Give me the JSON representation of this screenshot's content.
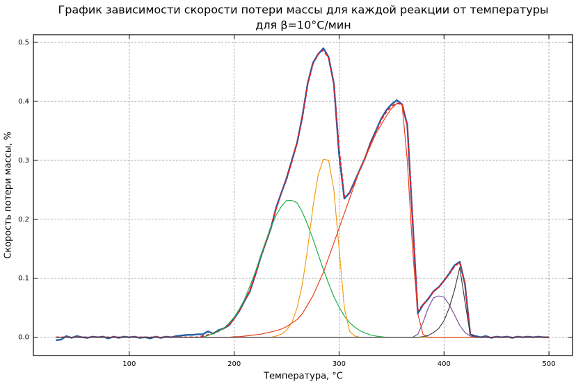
{
  "chart_data": {
    "type": "line",
    "title": [
      "График зависимости скорости потери массы для каждой реакции от температуры",
      "для β=10°C/мин"
    ],
    "xlabel": "Температура, °C",
    "ylabel": "Скорость потери массы, %",
    "xlim": [
      8.6,
      522.5
    ],
    "ylim": [
      -0.031,
      0.513
    ],
    "xticks": [
      100,
      200,
      300,
      400,
      500
    ],
    "yticks": [
      {
        "value": 0,
        "label": "0.0"
      },
      0.1,
      0.2,
      0.3,
      0.4,
      0.5
    ],
    "grid": true,
    "x": [
      30,
      35,
      40,
      45,
      50,
      55,
      60,
      65,
      70,
      75,
      80,
      85,
      90,
      95,
      100,
      105,
      110,
      115,
      120,
      125,
      130,
      135,
      140,
      145,
      150,
      155,
      160,
      165,
      170,
      175,
      180,
      185,
      190,
      195,
      200,
      205,
      210,
      215,
      220,
      225,
      230,
      235,
      240,
      245,
      250,
      255,
      260,
      265,
      270,
      275,
      280,
      285,
      290,
      295,
      300,
      305,
      310,
      315,
      320,
      325,
      330,
      335,
      340,
      345,
      350,
      355,
      360,
      365,
      370,
      375,
      380,
      385,
      390,
      395,
      400,
      405,
      410,
      415,
      420,
      425,
      430,
      435,
      440,
      445,
      450,
      455,
      460,
      465,
      470,
      475,
      480,
      485,
      490,
      495,
      500
    ],
    "series": [
      {
        "color": "#2060a8",
        "linewidth": 2.4,
        "linestyle": "solid",
        "values": [
          -0.005,
          -0.004,
          0.002,
          -0.001,
          0.002,
          0,
          -0.001,
          0.001,
          0,
          0.001,
          -0.002,
          0.001,
          -0.001,
          0.001,
          0,
          0.001,
          -0.001,
          0,
          -0.002,
          0.001,
          -0.001,
          0.001,
          0,
          0.002,
          0.003,
          0.004,
          0.004,
          0.005,
          0.005,
          0.01,
          0.006,
          0.012,
          0.015,
          0.02,
          0.032,
          0.045,
          0.062,
          0.078,
          0.105,
          0.135,
          0.16,
          0.185,
          0.22,
          0.245,
          0.27,
          0.3,
          0.33,
          0.375,
          0.43,
          0.465,
          0.48,
          0.49,
          0.475,
          0.43,
          0.31,
          0.235,
          0.245,
          0.265,
          0.285,
          0.305,
          0.33,
          0.35,
          0.37,
          0.385,
          0.395,
          0.402,
          0.395,
          0.36,
          0.2,
          0.04,
          0.055,
          0.065,
          0.078,
          0.085,
          0.096,
          0.108,
          0.122,
          0.128,
          0.09,
          0.005,
          0.002,
          0,
          0.002,
          -0.001,
          0.001,
          0,
          0.001,
          -0.001,
          0.001,
          0,
          0.001,
          0,
          0.001,
          0,
          0
        ]
      },
      {
        "color": "#e8202a",
        "linewidth": 2,
        "linestyle": "dashed",
        "values": [
          0,
          0,
          0,
          0,
          0,
          0,
          0,
          0,
          0,
          0,
          0,
          0,
          0,
          0,
          0,
          0,
          0,
          0,
          0,
          0,
          0,
          0,
          0,
          0,
          0,
          0,
          0,
          0,
          0.002,
          0.004,
          0.007,
          0.01,
          0.015,
          0.021,
          0.032,
          0.045,
          0.062,
          0.08,
          0.105,
          0.133,
          0.16,
          0.187,
          0.218,
          0.245,
          0.268,
          0.298,
          0.33,
          0.372,
          0.428,
          0.463,
          0.48,
          0.487,
          0.473,
          0.43,
          0.32,
          0.238,
          0.245,
          0.265,
          0.285,
          0.305,
          0.328,
          0.348,
          0.368,
          0.382,
          0.392,
          0.397,
          0.395,
          0.36,
          0.2,
          0.045,
          0.055,
          0.066,
          0.077,
          0.085,
          0.096,
          0.107,
          0.12,
          0.127,
          0.09,
          0.005,
          0,
          0,
          0,
          0,
          0,
          0,
          0,
          0,
          0,
          0,
          0,
          0,
          0,
          0,
          0
        ]
      },
      {
        "color": "#1db04b",
        "linewidth": 1.2,
        "linestyle": "solid",
        "values": [
          0,
          0,
          0,
          0,
          0,
          0,
          0,
          0,
          0,
          0,
          0,
          0,
          0,
          0,
          0,
          0,
          0,
          0,
          0,
          0,
          0,
          0,
          0,
          0,
          0,
          0,
          0,
          0,
          0,
          0.003,
          0.006,
          0.01,
          0.015,
          0.024,
          0.034,
          0.048,
          0.065,
          0.087,
          0.11,
          0.136,
          0.162,
          0.186,
          0.207,
          0.222,
          0.232,
          0.232,
          0.228,
          0.212,
          0.191,
          0.167,
          0.141,
          0.115,
          0.091,
          0.069,
          0.051,
          0.036,
          0.025,
          0.017,
          0.011,
          0.007,
          0.004,
          0.002,
          0.001,
          0,
          0,
          0,
          0,
          0,
          0,
          0,
          0,
          0,
          0,
          0,
          0,
          0,
          0,
          0,
          0,
          0,
          0,
          0,
          0,
          0,
          0,
          0,
          0,
          0,
          0,
          0,
          0,
          0,
          0,
          0,
          0
        ]
      },
      {
        "color": "#f39c12",
        "linewidth": 1.2,
        "linestyle": "solid",
        "values": [
          0,
          0,
          0,
          0,
          0,
          0,
          0,
          0,
          0,
          0,
          0,
          0,
          0,
          0,
          0,
          0,
          0,
          0,
          0,
          0,
          0,
          0,
          0,
          0,
          0,
          0,
          0,
          0,
          0,
          0,
          0,
          0,
          0,
          0,
          0,
          0,
          0,
          0,
          0,
          0,
          0,
          0,
          0.002,
          0.005,
          0.012,
          0.025,
          0.05,
          0.09,
          0.15,
          0.22,
          0.275,
          0.302,
          0.3,
          0.25,
          0.15,
          0.05,
          0.01,
          0.002,
          0,
          0,
          0,
          0,
          0,
          0,
          0,
          0,
          0,
          0,
          0,
          0,
          0,
          0,
          0,
          0,
          0,
          0,
          0,
          0,
          0,
          0,
          0,
          0,
          0,
          0,
          0,
          0,
          0,
          0,
          0,
          0,
          0,
          0,
          0,
          0,
          0
        ]
      },
      {
        "color": "#e8401c",
        "linewidth": 1.2,
        "linestyle": "solid",
        "values": [
          0,
          0,
          0,
          0,
          0,
          0,
          0,
          0,
          0,
          0,
          0,
          0,
          0,
          0,
          0,
          0,
          0,
          0,
          0,
          0,
          0,
          0,
          0,
          0,
          0,
          0,
          0,
          0,
          0,
          0,
          0,
          0,
          0,
          0,
          0.001,
          0.001,
          0.002,
          0.003,
          0.004,
          0.005,
          0.007,
          0.009,
          0.011,
          0.014,
          0.018,
          0.024,
          0.03,
          0.04,
          0.055,
          0.07,
          0.09,
          0.11,
          0.135,
          0.16,
          0.185,
          0.21,
          0.235,
          0.26,
          0.285,
          0.305,
          0.325,
          0.345,
          0.36,
          0.375,
          0.388,
          0.396,
          0.395,
          0.3,
          0.15,
          0.04,
          0.005,
          0,
          0,
          0,
          0,
          0,
          0,
          0,
          0,
          0,
          0,
          0,
          0,
          0,
          0,
          0,
          0,
          0,
          0,
          0,
          0,
          0,
          0,
          0,
          0
        ]
      },
      {
        "color": "#7b4f9e",
        "linewidth": 1.2,
        "linestyle": "solid",
        "values": [
          0,
          0,
          0,
          0,
          0,
          0,
          0,
          0,
          0,
          0,
          0,
          0,
          0,
          0,
          0,
          0,
          0,
          0,
          0,
          0,
          0,
          0,
          0,
          0,
          0,
          0,
          0,
          0,
          0,
          0,
          0,
          0,
          0,
          0,
          0,
          0,
          0,
          0,
          0,
          0,
          0,
          0,
          0,
          0,
          0,
          0,
          0,
          0,
          0,
          0,
          0,
          0,
          0,
          0,
          0,
          0,
          0,
          0,
          0,
          0,
          0,
          0,
          0,
          0,
          0,
          0,
          0,
          0,
          0,
          0.005,
          0.025,
          0.05,
          0.067,
          0.07,
          0.068,
          0.055,
          0.038,
          0.02,
          0.008,
          0.002,
          0,
          0,
          0,
          0,
          0,
          0,
          0,
          0,
          0,
          0,
          0,
          0,
          0,
          0,
          0
        ]
      },
      {
        "color": "#404040",
        "linewidth": 1.2,
        "linestyle": "solid",
        "values": [
          0,
          0,
          0,
          0,
          0,
          0,
          0,
          0,
          0,
          0,
          0,
          0,
          0,
          0,
          0,
          0,
          0,
          0,
          0,
          0,
          0,
          0,
          0,
          0,
          0,
          0,
          0,
          0,
          0,
          0,
          0,
          0,
          0,
          0,
          0,
          0,
          0,
          0,
          0,
          0,
          0,
          0,
          0,
          0,
          0,
          0,
          0,
          0,
          0,
          0,
          0,
          0,
          0,
          0,
          0,
          0,
          0,
          0,
          0,
          0,
          0,
          0,
          0,
          0,
          0,
          0,
          0,
          0,
          0,
          0,
          0.001,
          0.003,
          0.008,
          0.015,
          0.028,
          0.05,
          0.08,
          0.118,
          0.06,
          0.005,
          0,
          0,
          0,
          0,
          0,
          0,
          0,
          0,
          0,
          0,
          0,
          0,
          0,
          0,
          0
        ]
      }
    ]
  }
}
